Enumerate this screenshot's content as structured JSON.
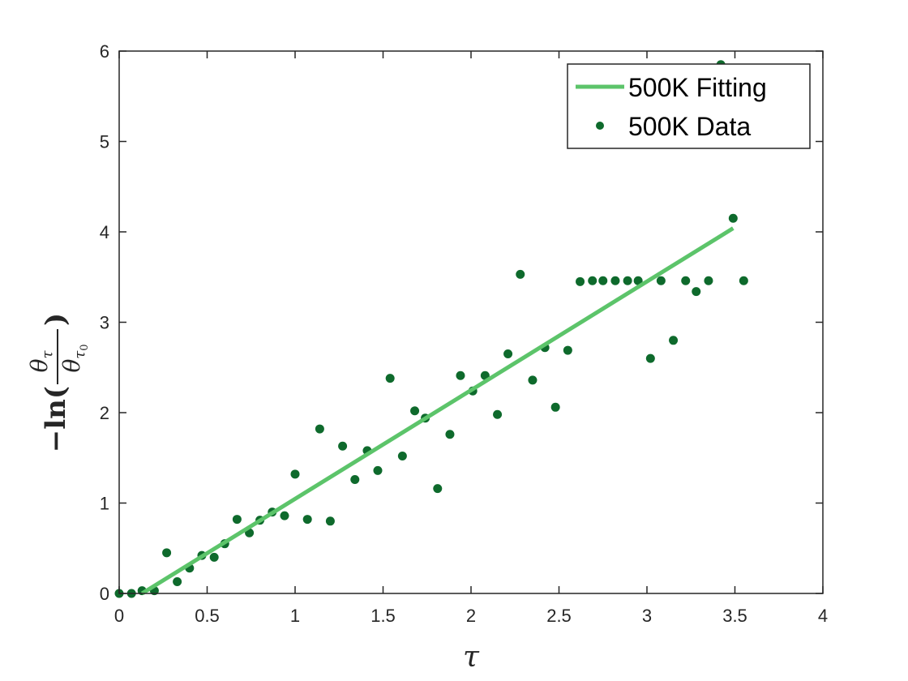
{
  "chart_data": {
    "type": "scatter",
    "xlabel": "τ",
    "ylabel": {
      "prefix": "−ln(",
      "numerator": "θ",
      "numerator_sub": "τ",
      "denominator": "θ",
      "denominator_sub": "τ",
      "denominator_subsub": "0",
      "suffix": ")"
    },
    "xlim": [
      0,
      4
    ],
    "ylim": [
      0,
      6
    ],
    "xticks": [
      0,
      0.5,
      1,
      1.5,
      2,
      2.5,
      3,
      3.5,
      4
    ],
    "xtick_labels": [
      "0",
      "0.5",
      "1",
      "1.5",
      "2",
      "2.5",
      "3",
      "3.5",
      "4"
    ],
    "yticks": [
      0,
      1,
      2,
      3,
      4,
      5,
      6
    ],
    "ytick_labels": [
      "0",
      "1",
      "2",
      "3",
      "4",
      "5",
      "6"
    ],
    "grid": false,
    "legend_position": "top-right",
    "series": [
      {
        "name": "500K Fitting",
        "kind": "line",
        "color": "#5cc46a",
        "x": [
          0.13,
          3.49
        ],
        "y": [
          0.0,
          4.04
        ]
      },
      {
        "name": "500K Data",
        "kind": "scatter",
        "color": "#0e6a2c",
        "x": [
          0.0,
          0.07,
          0.13,
          0.2,
          0.27,
          0.33,
          0.4,
          0.47,
          0.54,
          0.6,
          0.67,
          0.74,
          0.8,
          0.87,
          0.94,
          1.0,
          1.07,
          1.14,
          1.2,
          1.27,
          1.34,
          1.41,
          1.47,
          1.54,
          1.61,
          1.68,
          1.74,
          1.81,
          1.88,
          1.94,
          2.01,
          2.08,
          2.15,
          2.21,
          2.28,
          2.35,
          2.42,
          2.48,
          2.55,
          2.62,
          2.69,
          2.75,
          2.82,
          2.89,
          2.95,
          3.02,
          3.08,
          3.15,
          3.22,
          3.28,
          3.35,
          3.42,
          3.49,
          3.55
        ],
        "y": [
          0.0,
          0.0,
          0.03,
          0.03,
          0.45,
          0.13,
          0.28,
          0.42,
          0.4,
          0.55,
          0.82,
          0.67,
          0.81,
          0.9,
          0.86,
          1.32,
          0.82,
          1.82,
          0.8,
          1.63,
          1.26,
          1.58,
          1.36,
          2.38,
          1.52,
          2.02,
          1.94,
          1.16,
          1.76,
          2.41,
          2.24,
          2.41,
          1.98,
          2.65,
          3.53,
          2.36,
          2.72,
          2.06,
          2.69,
          3.45,
          3.46,
          3.46,
          3.46,
          3.46,
          3.46,
          2.6,
          3.46,
          2.8,
          3.46,
          3.34,
          3.46,
          5.85,
          4.15,
          3.46
        ]
      }
    ]
  }
}
